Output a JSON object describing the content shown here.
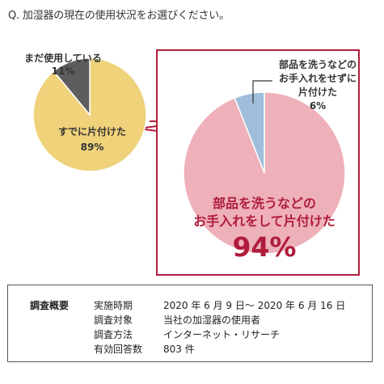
{
  "question": "Q. 加湿器の現在の使用状況をお選びください。",
  "chart_data": [
    {
      "type": "pie",
      "slices": [
        {
          "label": "すでに片付けた",
          "value": 89,
          "value_label": "89%",
          "color": "#efd27a"
        },
        {
          "label": "まだ使用している",
          "value": 11,
          "value_label": "11%",
          "color": "#5d5d5d"
        }
      ]
    },
    {
      "type": "pie",
      "slices": [
        {
          "label": "部品を洗うなどのお手入れをして片付けた",
          "label_lines": [
            "部品を洗うなどの",
            "お手入れをして片付けた"
          ],
          "value": 94,
          "value_label": "94%",
          "color": "#eeb0b9"
        },
        {
          "label": "部品を洗うなどのお手入れをせずに片付けた",
          "label_lines": [
            "部品を洗うなどの",
            "お手入れをせずに",
            "片付けた"
          ],
          "value": 6,
          "value_label": "6%",
          "color": "#9fbedb"
        }
      ],
      "highlight_color": "#b01c3c"
    }
  ],
  "survey": {
    "title": "調査概要",
    "rows": [
      {
        "key": "実施時期",
        "value": "2020 年 6 月 9 日～ 2020 年 6 月 16 日"
      },
      {
        "key": "調査対象",
        "value": "当社の加湿器の使用者"
      },
      {
        "key": "調査方法",
        "value": "インターネット・リサーチ"
      },
      {
        "key": "有効回答数",
        "value": "803 件"
      }
    ]
  }
}
